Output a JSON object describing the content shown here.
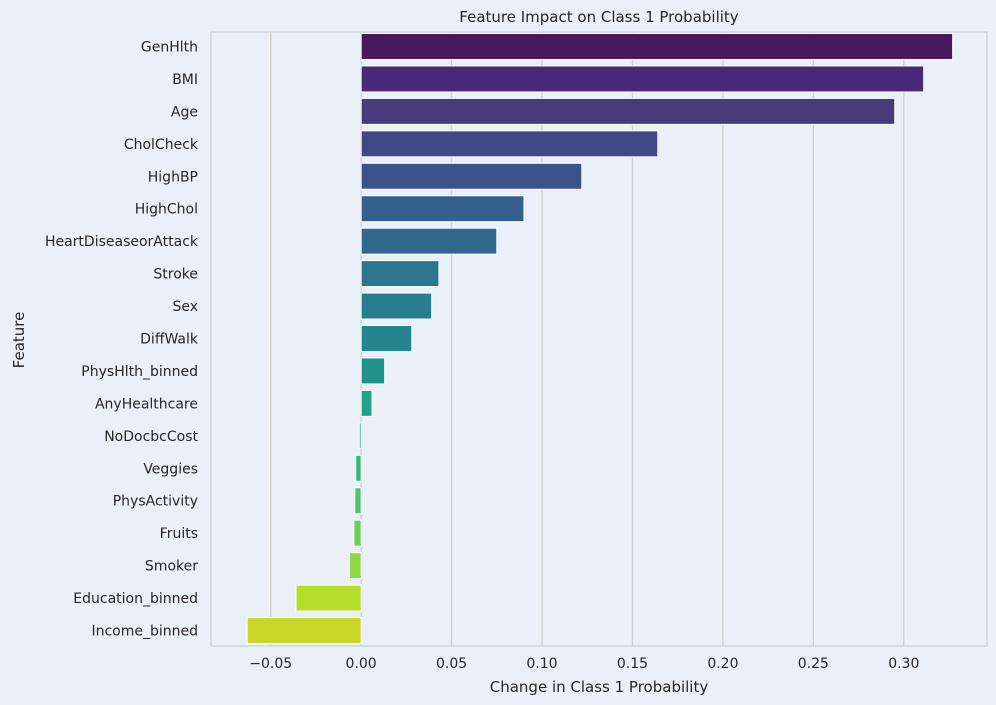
{
  "chart_data": {
    "type": "bar",
    "orientation": "horizontal",
    "title": "Feature Impact on Class 1 Probability",
    "xlabel": "Change in Class 1 Probability",
    "ylabel": "Feature",
    "xlim": [
      -0.083,
      0.346
    ],
    "xticks": [
      -0.05,
      0.0,
      0.05,
      0.1,
      0.15,
      0.2,
      0.25,
      0.3
    ],
    "xtick_labels": [
      "−0.05",
      "0.00",
      "0.05",
      "0.10",
      "0.15",
      "0.20",
      "0.25",
      "0.30"
    ],
    "grid": "vertical",
    "categories": [
      "GenHlth",
      "BMI",
      "Age",
      "CholCheck",
      "HighBP",
      "HighChol",
      "HeartDiseaseorAttack",
      "Stroke",
      "Sex",
      "DiffWalk",
      "PhysHlth_binned",
      "AnyHealthcare",
      "NoDocbcCost",
      "Veggies",
      "PhysActivity",
      "Fruits",
      "Smoker",
      "Education_binned",
      "Income_binned"
    ],
    "values": [
      0.327,
      0.311,
      0.295,
      0.164,
      0.122,
      0.09,
      0.075,
      0.043,
      0.039,
      0.028,
      0.013,
      0.006,
      -0.001,
      -0.003,
      -0.0035,
      -0.004,
      -0.0065,
      -0.036,
      -0.063
    ],
    "colors": [
      "#481a5c",
      "#482878",
      "#473c7b",
      "#424886",
      "#3b528b",
      "#355f8d",
      "#30688e",
      "#2b758e",
      "#287d8e",
      "#25858e",
      "#22918b",
      "#20a386",
      "#27ad81",
      "#35b779",
      "#4ec36b",
      "#6ccd5a",
      "#8fd744",
      "#b5de2b",
      "#c9d72a"
    ]
  }
}
